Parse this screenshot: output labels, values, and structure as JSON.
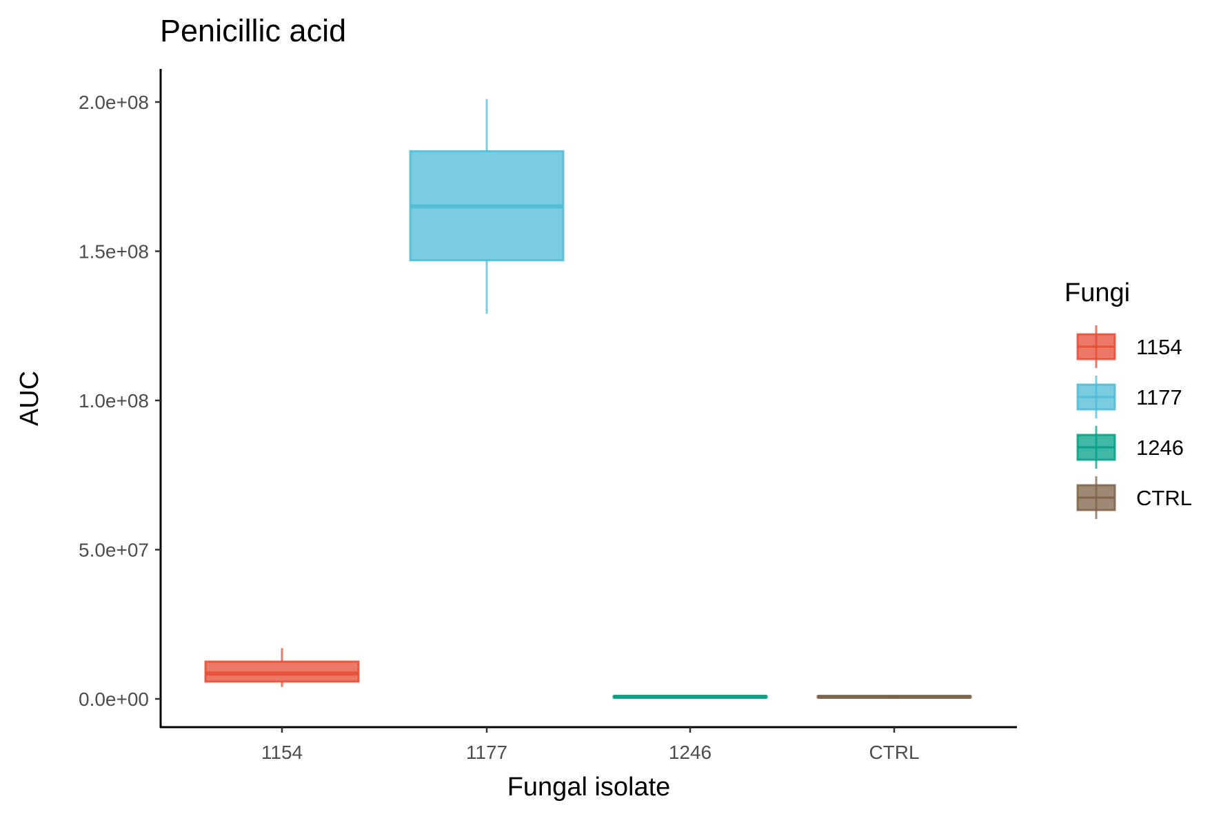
{
  "chart_data": {
    "type": "boxplot",
    "title": "Penicillic acid",
    "xlabel": "Fungal isolate",
    "ylabel": "AUC",
    "categories": [
      "1154",
      "1177",
      "1246",
      "CTRL"
    ],
    "ylim": [
      -9500000,
      211000000
    ],
    "yticks": [
      0,
      50000000,
      100000000,
      150000000,
      200000000
    ],
    "ytick_labels": [
      "0.0e+00",
      "5.0e+07",
      "1.0e+08",
      "1.5e+08",
      "2.0e+08"
    ],
    "grid": false,
    "legend": {
      "title": "Fungi",
      "position": "right",
      "entries": [
        "1154",
        "1177",
        "1246",
        "CTRL"
      ]
    },
    "series": [
      {
        "category": "1154",
        "color": "#E64B35",
        "min": 4000000,
        "q1": 5800000,
        "median": 8500000,
        "q3": 12500000,
        "max": 17000000
      },
      {
        "category": "1177",
        "color": "#4DBBD5",
        "min": 129000000,
        "q1": 147000000,
        "median": 165000000,
        "q3": 183500000,
        "max": 201000000
      },
      {
        "category": "1246",
        "color": "#00A087",
        "min": 300000,
        "q1": 500000,
        "median": 700000,
        "q3": 900000,
        "max": 1100000
      },
      {
        "category": "CTRL",
        "color": "#7E6148",
        "min": 300000,
        "q1": 500000,
        "median": 700000,
        "q3": 900000,
        "max": 1100000
      }
    ]
  }
}
